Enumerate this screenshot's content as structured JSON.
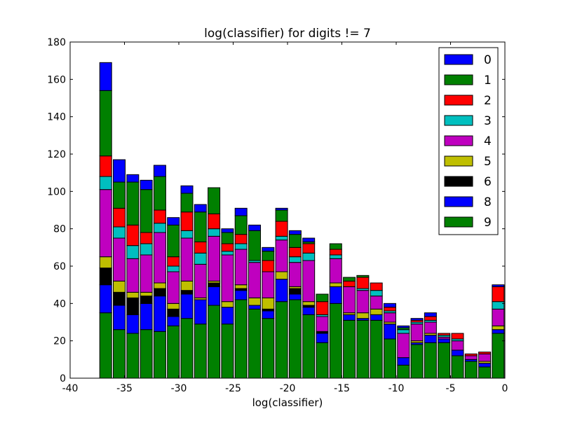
{
  "chart_data": {
    "type": "histogram",
    "stacked": true,
    "title": "log(classifier) for digits != 7",
    "xlabel": "log(classifier)",
    "xlim": [
      -40,
      0
    ],
    "ylim": [
      0,
      180
    ],
    "xticks": [
      -40,
      -35,
      -30,
      -25,
      -20,
      -15,
      -10,
      -5,
      0
    ],
    "yticks": [
      0,
      20,
      40,
      60,
      80,
      100,
      120,
      140,
      160,
      180
    ],
    "legend": "upper right",
    "bins": [
      -37.35,
      -36.105,
      -34.86,
      -33.615,
      -32.37,
      -31.125,
      -29.88,
      -28.635,
      -27.39,
      -26.145,
      -24.9,
      -23.655,
      -22.41,
      -21.165,
      -19.92,
      -18.675,
      -17.43,
      -16.185,
      -14.94,
      -13.695,
      -12.45,
      -11.205,
      -9.96,
      -8.715,
      -7.47,
      -6.225,
      -4.98,
      -3.735,
      -2.49,
      -1.245,
      0
    ],
    "series": [
      {
        "name": "0",
        "color": "#0000ff",
        "values": [
          15,
          12,
          4,
          5,
          6,
          4,
          4,
          4,
          0,
          2,
          4,
          3,
          2,
          1,
          2,
          2,
          0,
          0,
          0,
          0,
          0,
          2,
          1,
          1,
          2,
          0,
          0,
          0,
          0,
          1
        ]
      },
      {
        "name": "1",
        "color": "#008000",
        "values": [
          35,
          14,
          23,
          23,
          18,
          17,
          10,
          16,
          14,
          6,
          10,
          16,
          5,
          6,
          7,
          1,
          4,
          3,
          2,
          1,
          0,
          0,
          1,
          0,
          0,
          0,
          0,
          0,
          0,
          0
        ]
      },
      {
        "name": "2",
        "color": "#ff0000",
        "values": [
          11,
          10,
          11,
          6,
          7,
          5,
          10,
          6,
          8,
          4,
          5,
          0,
          6,
          8,
          5,
          5,
          7,
          3,
          3,
          6,
          4,
          2,
          0,
          1,
          2,
          1,
          3,
          1,
          1,
          8
        ]
      },
      {
        "name": "3",
        "color": "#00bfbf",
        "values": [
          7,
          6,
          7,
          6,
          5,
          3,
          4,
          6,
          4,
          2,
          3,
          1,
          0,
          2,
          3,
          4,
          1,
          2,
          0,
          1,
          3,
          1,
          2,
          1,
          1,
          1,
          1,
          0,
          0,
          4
        ]
      },
      {
        "name": "4",
        "color": "#bf00bf",
        "values": [
          36,
          23,
          18,
          20,
          27,
          17,
          23,
          18,
          24,
          25,
          19,
          19,
          14,
          17,
          13,
          22,
          8,
          13,
          14,
          12,
          7,
          5,
          13,
          9,
          6,
          1,
          5,
          2,
          4,
          9
        ]
      },
      {
        "name": "5",
        "color": "#bfbf00",
        "values": [
          6,
          6,
          3,
          2,
          3,
          3,
          5,
          1,
          1,
          3,
          2,
          4,
          6,
          4,
          1,
          2,
          0,
          2,
          1,
          3,
          3,
          1,
          0,
          1,
          1,
          0,
          0,
          0,
          1,
          2
        ]
      },
      {
        "name": "6",
        "color": "#000000",
        "values": [
          9,
          7,
          9,
          4,
          4,
          4,
          2,
          0,
          2,
          0,
          1,
          0,
          1,
          0,
          3,
          1,
          1,
          0,
          0,
          0,
          0,
          0,
          0,
          0,
          0,
          0,
          0,
          0,
          0,
          0
        ]
      },
      {
        "name": "8",
        "color": "#0000ff",
        "values": [
          15,
          13,
          10,
          14,
          19,
          5,
          13,
          13,
          10,
          9,
          5,
          2,
          4,
          12,
          3,
          4,
          5,
          9,
          3,
          1,
          3,
          8,
          4,
          1,
          4,
          2,
          3,
          1,
          2,
          2
        ]
      },
      {
        "name": "9",
        "color": "#008000",
        "values": [
          35,
          26,
          24,
          26,
          25,
          28,
          32,
          29,
          39,
          29,
          42,
          37,
          32,
          41,
          42,
          34,
          19,
          40,
          31,
          31,
          31,
          21,
          7,
          18,
          19,
          19,
          12,
          9,
          6,
          24
        ]
      }
    ]
  }
}
